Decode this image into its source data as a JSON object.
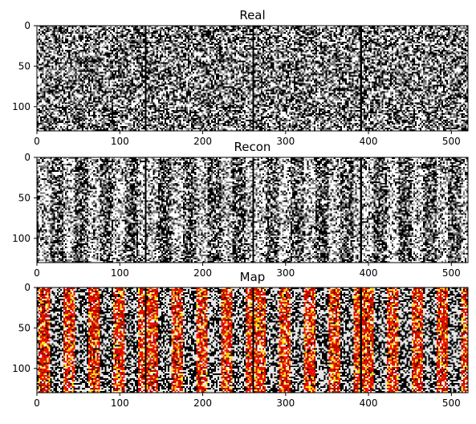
{
  "chart_data": [
    {
      "type": "heatmap",
      "title": "Real",
      "colormap": "gray",
      "pattern": "noise",
      "xlim": [
        0,
        520
      ],
      "ylim": [
        130,
        0
      ],
      "xticks": [
        0,
        100,
        200,
        300,
        400,
        500
      ],
      "yticks": [
        0,
        50,
        100
      ],
      "tiles": 4,
      "tile_width": 130
    },
    {
      "type": "heatmap",
      "title": "Recon",
      "colormap": "gray",
      "pattern": "vertical-bands",
      "xlim": [
        0,
        520
      ],
      "ylim": [
        130,
        0
      ],
      "xticks": [
        0,
        100,
        200,
        300,
        400,
        500
      ],
      "yticks": [
        0,
        50,
        100
      ],
      "tiles": 4,
      "tile_width": 130
    },
    {
      "type": "heatmap",
      "title": "Map",
      "colormap": "gray+hot-overlay",
      "pattern": "vertical-bands",
      "xlim": [
        0,
        520
      ],
      "ylim": [
        130,
        0
      ],
      "xticks": [
        0,
        100,
        200,
        300,
        400,
        500
      ],
      "yticks": [
        0,
        50,
        100
      ],
      "tiles": 4,
      "tile_width": 130
    }
  ]
}
